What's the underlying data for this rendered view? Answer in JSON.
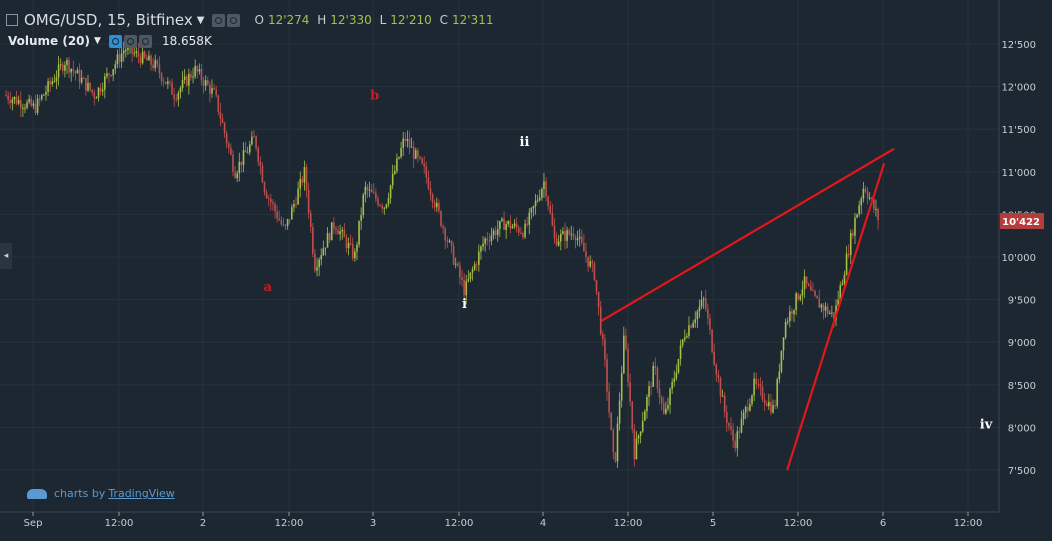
{
  "header": {
    "symbol": "OMG/USD, 15, Bitfinex",
    "ohlc": [
      {
        "k": "O",
        "v": "12'274"
      },
      {
        "k": "H",
        "v": "12'330"
      },
      {
        "k": "L",
        "v": "12'210"
      },
      {
        "k": "C",
        "v": "12'311"
      }
    ]
  },
  "volume": {
    "label": "Volume (20)",
    "value": "18.658K"
  },
  "watermark": {
    "prefix": "charts by",
    "brand": "TradingView"
  },
  "colors": {
    "background": "#1c2731",
    "up": "#a3c04a",
    "down": "#c0504d",
    "trendline": "#e3171b",
    "annotation_red": "#d11a1a",
    "price_tag": "#b53c3c"
  },
  "chart_data": {
    "type": "candlestick",
    "price_axis": {
      "ticks": [
        "12'500",
        "12'000",
        "11'500",
        "11'000",
        "10'500",
        "10'000",
        "9'500",
        "9'000",
        "8'500",
        "8'000",
        "7'500"
      ],
      "ylim": [
        7200,
        12800
      ],
      "last_price": "10'422"
    },
    "time_axis": {
      "ticks": [
        "Sep",
        "12:00",
        "2",
        "12:00",
        "3",
        "12:00",
        "4",
        "12:00",
        "5",
        "12:00",
        "6",
        "12:00"
      ]
    },
    "close_path": [
      {
        "t": 0,
        "p": 11900
      },
      {
        "t": 0.03,
        "p": 11750
      },
      {
        "t": 0.06,
        "p": 12300
      },
      {
        "t": 0.09,
        "p": 11900
      },
      {
        "t": 0.12,
        "p": 12450
      },
      {
        "t": 0.15,
        "p": 12250
      },
      {
        "t": 0.17,
        "p": 11900
      },
      {
        "t": 0.19,
        "p": 12200
      },
      {
        "t": 0.21,
        "p": 11900
      },
      {
        "t": 0.23,
        "p": 11000
      },
      {
        "t": 0.25,
        "p": 11400
      },
      {
        "t": 0.26,
        "p": 10800
      },
      {
        "t": 0.28,
        "p": 10300
      },
      {
        "t": 0.3,
        "p": 11000
      },
      {
        "t": 0.31,
        "p": 9900
      },
      {
        "t": 0.33,
        "p": 10400
      },
      {
        "t": 0.35,
        "p": 10000
      },
      {
        "t": 0.36,
        "p": 10800
      },
      {
        "t": 0.38,
        "p": 10600
      },
      {
        "t": 0.4,
        "p": 11400
      },
      {
        "t": 0.42,
        "p": 11000
      },
      {
        "t": 0.44,
        "p": 10300
      },
      {
        "t": 0.46,
        "p": 9600
      },
      {
        "t": 0.48,
        "p": 10200
      },
      {
        "t": 0.5,
        "p": 10400
      },
      {
        "t": 0.52,
        "p": 10300
      },
      {
        "t": 0.54,
        "p": 10900
      },
      {
        "t": 0.55,
        "p": 10200
      },
      {
        "t": 0.57,
        "p": 10300
      },
      {
        "t": 0.59,
        "p": 9800
      },
      {
        "t": 0.6,
        "p": 8800
      },
      {
        "t": 0.61,
        "p": 7500
      },
      {
        "t": 0.62,
        "p": 9100
      },
      {
        "t": 0.63,
        "p": 7700
      },
      {
        "t": 0.65,
        "p": 8700
      },
      {
        "t": 0.66,
        "p": 8100
      },
      {
        "t": 0.68,
        "p": 9100
      },
      {
        "t": 0.7,
        "p": 9500
      },
      {
        "t": 0.71,
        "p": 8800
      },
      {
        "t": 0.72,
        "p": 8200
      },
      {
        "t": 0.73,
        "p": 7800
      },
      {
        "t": 0.75,
        "p": 8500
      },
      {
        "t": 0.77,
        "p": 8200
      },
      {
        "t": 0.78,
        "p": 9200
      },
      {
        "t": 0.8,
        "p": 9700
      },
      {
        "t": 0.81,
        "p": 9500
      },
      {
        "t": 0.83,
        "p": 9300
      },
      {
        "t": 0.85,
        "p": 10400
      },
      {
        "t": 0.86,
        "p": 10850
      },
      {
        "t": 0.875,
        "p": 10422
      }
    ],
    "annotations": [
      {
        "text": "b",
        "color": "red",
        "t": 0.375,
        "p": 11850
      },
      {
        "text": "a",
        "color": "red",
        "t": 0.268,
        "p": 9600
      },
      {
        "text": "ii",
        "color": "white",
        "t": 0.525,
        "p": 11300
      },
      {
        "text": "i",
        "color": "white",
        "t": 0.465,
        "p": 9400
      },
      {
        "text": "iv",
        "color": "white",
        "t": 0.987,
        "p": 7990
      }
    ],
    "trendlines": [
      {
        "from": {
          "t": 0.602,
          "p": 9250
        },
        "to": {
          "t": 0.895,
          "p": 11270
        }
      },
      {
        "from": {
          "t": 0.788,
          "p": 7500
        },
        "to": {
          "t": 0.885,
          "p": 11100
        }
      }
    ]
  }
}
